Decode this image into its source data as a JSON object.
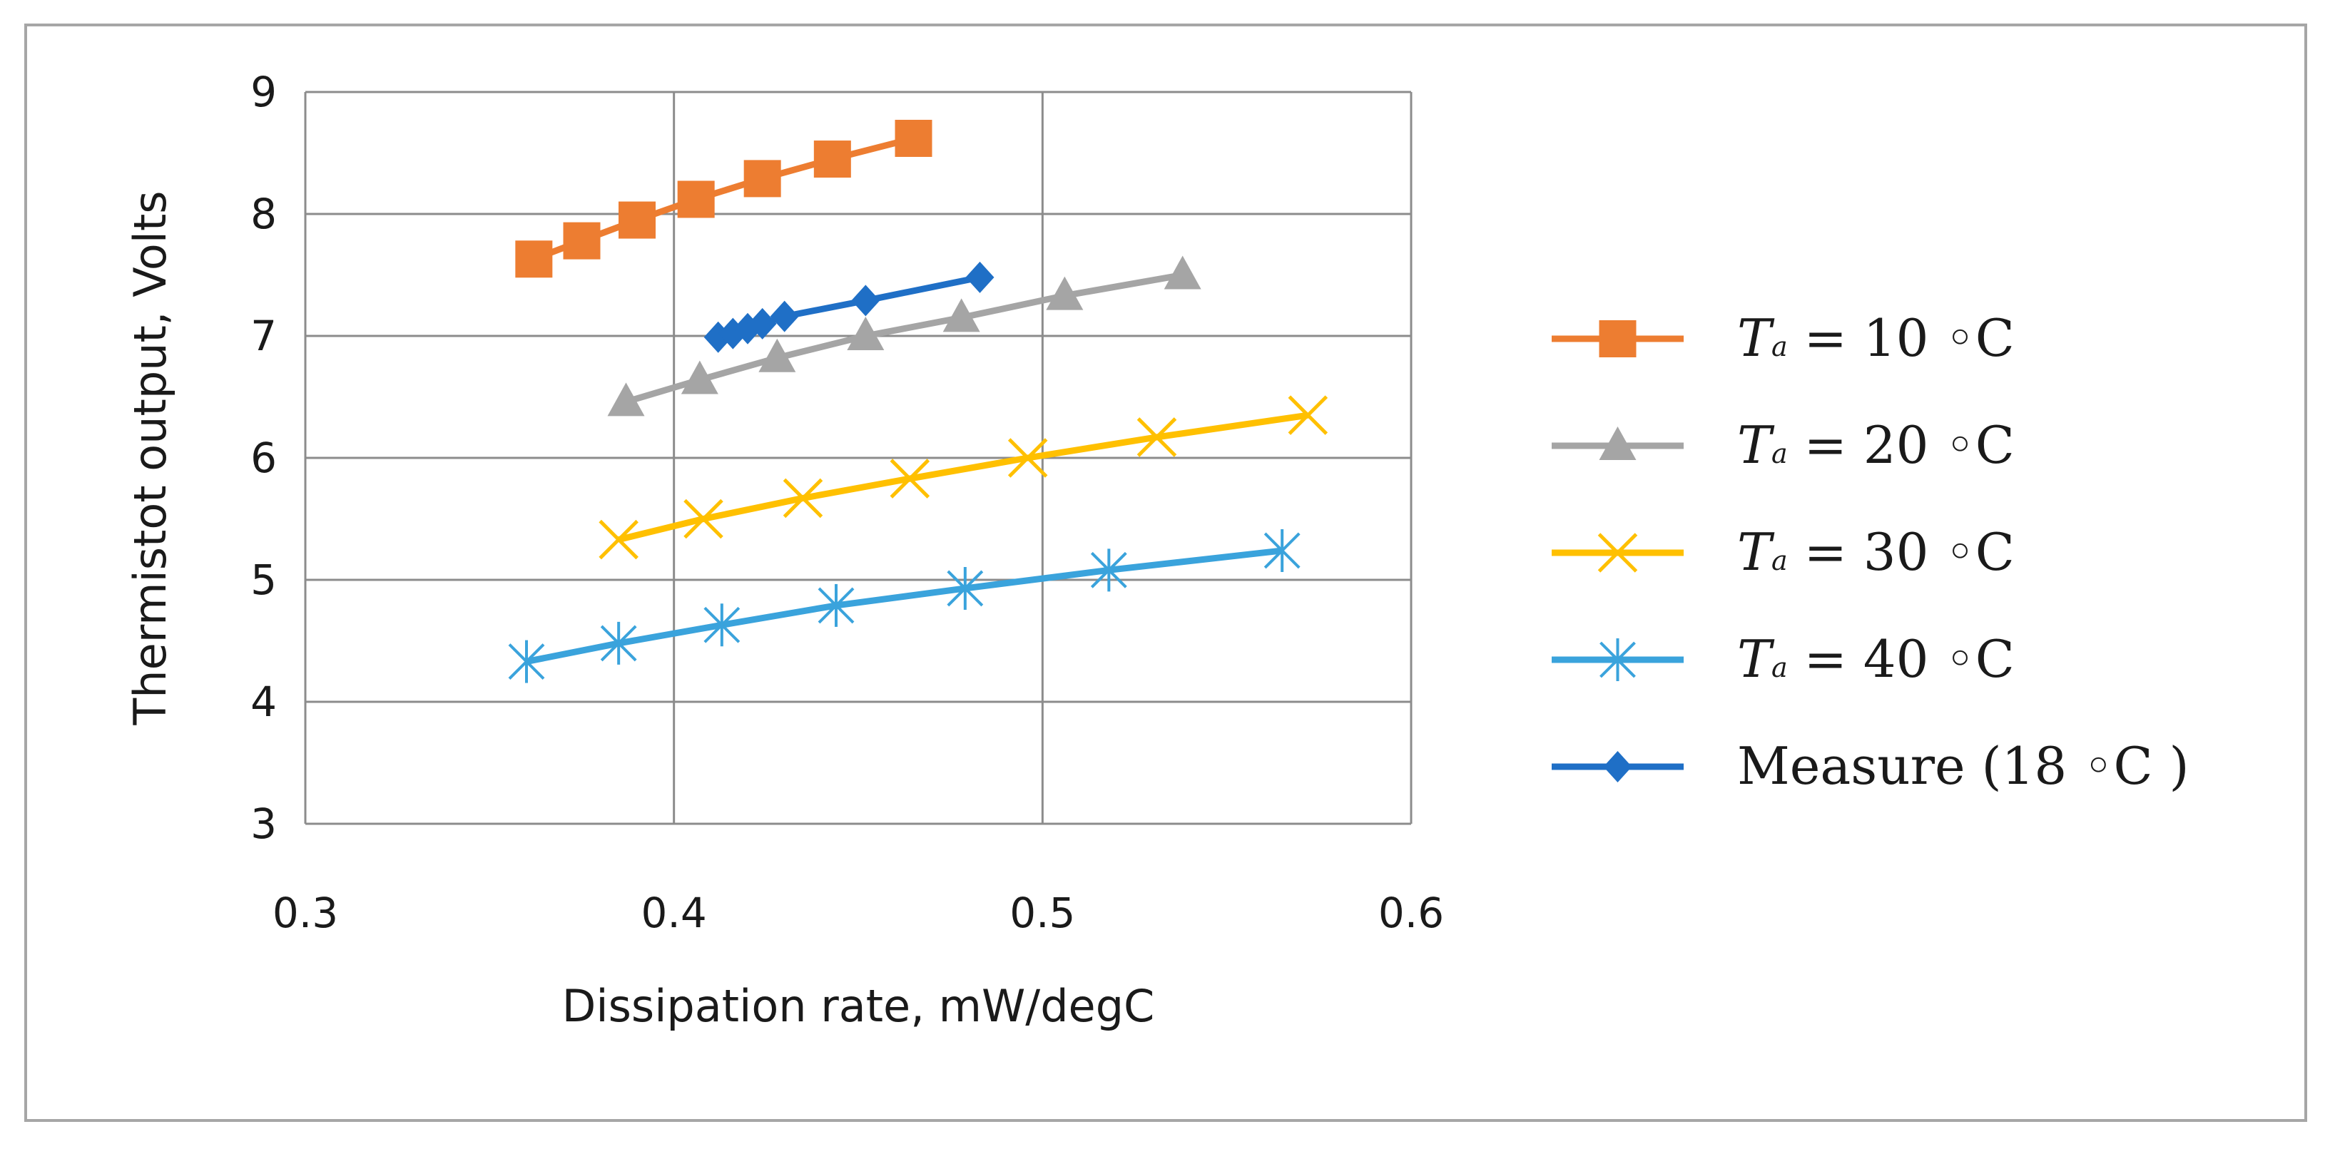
{
  "chart_data": {
    "type": "line",
    "title": "",
    "xlabel": "Dissipation rate, mW/degC",
    "ylabel": "Thermistot output, Volts",
    "xlim": [
      0.3,
      0.6
    ],
    "ylim": [
      3,
      9
    ],
    "xticks": [
      "0.3",
      "0.4",
      "0.5",
      "0.6"
    ],
    "yticks": [
      "3",
      "4",
      "5",
      "6",
      "7",
      "8",
      "9"
    ],
    "grid": true,
    "legend_position": "right",
    "series": [
      {
        "name": "Ta = 10 ◦C",
        "legend_main": "T",
        "legend_sub": "a",
        "legend_rest": " = 10 ◦C",
        "color": "#ed7d31",
        "marker": "square",
        "x": [
          0.362,
          0.375,
          0.39,
          0.406,
          0.424,
          0.443,
          0.465
        ],
        "y": [
          7.63,
          7.78,
          7.95,
          8.12,
          8.29,
          8.45,
          8.62
        ]
      },
      {
        "name": "Ta = 20 ◦C",
        "legend_main": "T",
        "legend_sub": "a",
        "legend_rest": " = 20 ◦C",
        "color": "#a5a5a5",
        "marker": "triangle",
        "x": [
          0.387,
          0.407,
          0.428,
          0.452,
          0.478,
          0.506,
          0.538
        ],
        "y": [
          6.46,
          6.64,
          6.82,
          7.0,
          7.15,
          7.33,
          7.5
        ]
      },
      {
        "name": "Ta = 30 ◦C",
        "legend_main": "T",
        "legend_sub": "a",
        "legend_rest": " = 30 ◦C",
        "color": "#ffc000",
        "marker": "x",
        "x": [
          0.385,
          0.408,
          0.435,
          0.464,
          0.496,
          0.531,
          0.572
        ],
        "y": [
          5.33,
          5.5,
          5.67,
          5.83,
          6.0,
          6.17,
          6.35
        ]
      },
      {
        "name": "Ta = 40 ◦C",
        "legend_main": "T",
        "legend_sub": "a",
        "legend_rest": " = 40 ◦C",
        "color": "#3aa3dc",
        "marker": "star",
        "x": [
          0.36,
          0.385,
          0.413,
          0.444,
          0.479,
          0.518,
          0.565
        ],
        "y": [
          4.33,
          4.48,
          4.63,
          4.79,
          4.93,
          5.08,
          5.24
        ]
      },
      {
        "name": "Measure (18 ◦C )",
        "legend_main": "Measure (18 ◦C )",
        "legend_sub": "",
        "legend_rest": "",
        "color": "#1f6fc6",
        "marker": "diamond",
        "x": [
          0.412,
          0.416,
          0.42,
          0.424,
          0.43,
          0.452,
          0.483
        ],
        "y": [
          6.99,
          7.02,
          7.06,
          7.1,
          7.16,
          7.29,
          7.48
        ]
      }
    ]
  }
}
